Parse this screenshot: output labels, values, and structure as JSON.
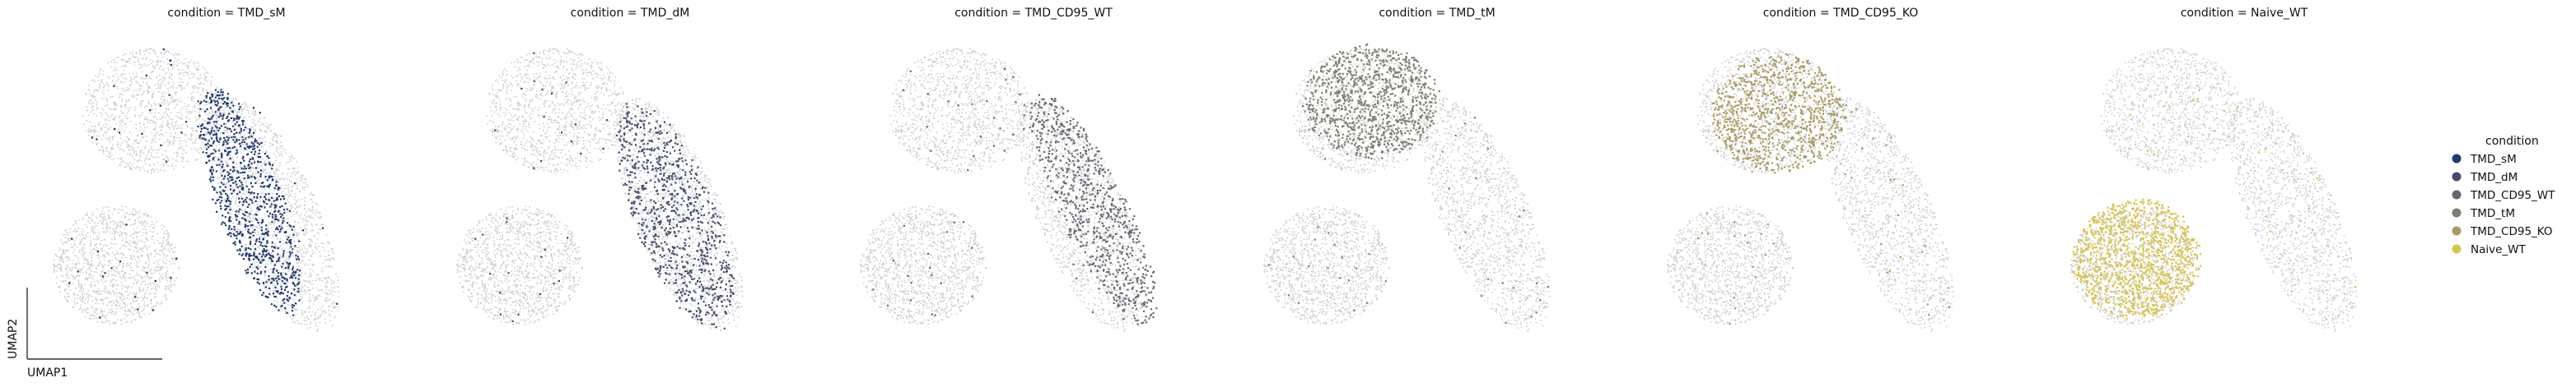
{
  "chart_data": {
    "type": "scatter",
    "xlabel": "UMAP1",
    "ylabel": "UMAP2",
    "background_color": "#cccccc",
    "panels": [
      {
        "title": "condition = TMD_sM",
        "highlight": "TMD_sM"
      },
      {
        "title": "condition = TMD_dM",
        "highlight": "TMD_dM"
      },
      {
        "title": "condition = TMD_CD95_WT",
        "highlight": "TMD_CD95_WT"
      },
      {
        "title": "condition = TMD_tM",
        "highlight": "TMD_tM"
      },
      {
        "title": "condition = TMD_CD95_KO",
        "highlight": "TMD_CD95_KO"
      },
      {
        "title": "condition = Naive_WT",
        "highlight": "Naive_WT"
      }
    ],
    "legend": {
      "title": "condition",
      "placement": "right",
      "entries": [
        {
          "label": "TMD_sM",
          "color": "#1f3a6e"
        },
        {
          "label": "TMD_dM",
          "color": "#454b6d"
        },
        {
          "label": "TMD_CD95_WT",
          "color": "#666770"
        },
        {
          "label": "TMD_tM",
          "color": "#7f7b70"
        },
        {
          "label": "TMD_CD95_KO",
          "color": "#a89b62"
        },
        {
          "label": "Naive_WT",
          "color": "#d8c452"
        }
      ]
    }
  }
}
